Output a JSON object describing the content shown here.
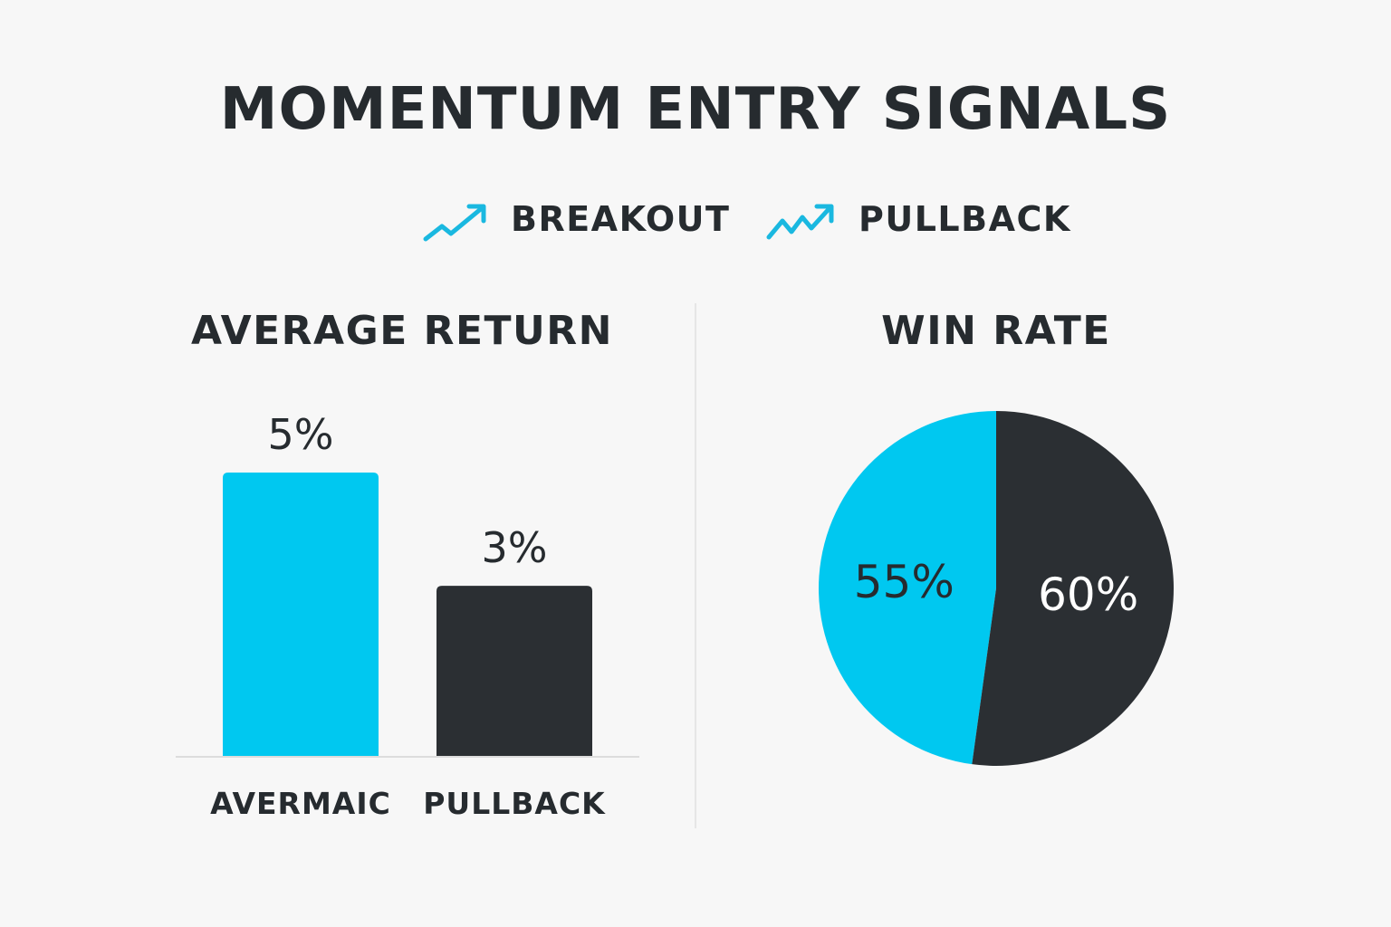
{
  "title": "MOMENTUM ENTRY SIGNALS",
  "legend": [
    {
      "label": "BREAKOUT",
      "icon": "trend-up-arrow-icon",
      "color": "#1ab8e0"
    },
    {
      "label": "PULLBACK",
      "icon": "zigzag-up-arrow-icon",
      "color": "#1ab8e0"
    }
  ],
  "colors": {
    "accent": "#00c8f0",
    "dark": "#2b2f33",
    "background": "#f7f7f7"
  },
  "chart_data": [
    {
      "type": "bar",
      "title": "AVERAGE RETURN",
      "categories": [
        "AVERMAIC",
        "PULLBACK"
      ],
      "values": [
        5,
        3
      ],
      "value_labels": [
        "5%",
        "3%"
      ],
      "colors": [
        "#00c8f0",
        "#2b2f33"
      ],
      "ylim": [
        0,
        5.75
      ],
      "grid": false
    },
    {
      "type": "pie",
      "title": "WIN RATE",
      "slices": [
        {
          "label": "55%",
          "value": 55,
          "color": "#00c8f0"
        },
        {
          "label": "60%",
          "value": 60,
          "color": "#2b2f33"
        }
      ]
    }
  ]
}
